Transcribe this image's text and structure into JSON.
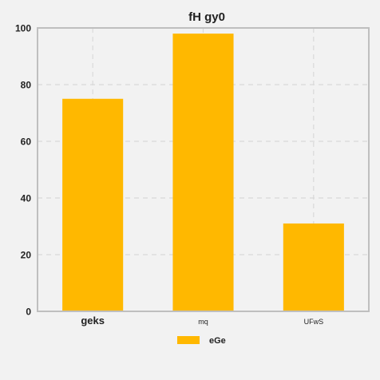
{
  "chart_data": {
    "type": "bar",
    "title": "fH gy0",
    "xlabel": "",
    "ylabel": "",
    "categories": [
      "geks",
      "mq",
      "UFwS"
    ],
    "series": [
      {
        "name": "eGe",
        "values": [
          75,
          98,
          31
        ]
      }
    ],
    "ylim": [
      0,
      100
    ],
    "yticks": [
      0,
      20,
      40,
      60,
      80,
      100
    ],
    "grid": true,
    "legend_position": "bottom-center",
    "colors": {
      "bar": "#FFB800",
      "background": "#f2f2f2",
      "grid": "#d9d9d9",
      "frame": "#bfbfbf"
    }
  }
}
